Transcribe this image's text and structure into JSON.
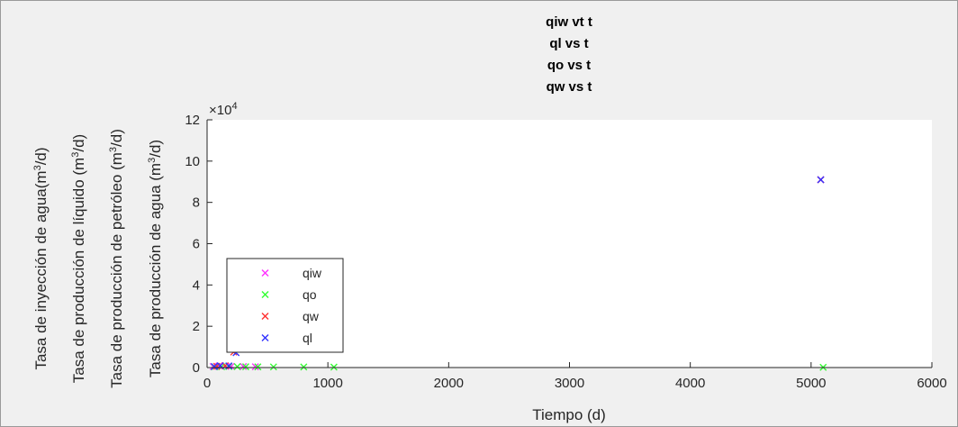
{
  "chart_data": {
    "type": "scatter",
    "title_lines": [
      "qiw vt t",
      "ql vs t",
      "qo vs t",
      "qw vs t"
    ],
    "xlabel": "Tiempo (d)",
    "ylabels": [
      {
        "text": "Tasa de inyección de agua(m",
        "sup": "3",
        "end": "/d)"
      },
      {
        "text": "Tasa de producción de líquido (m",
        "sup": "3",
        "end": "/d)"
      },
      {
        "text": "Tasa de producción de petróleo (m",
        "sup": "3",
        "end": "/d)"
      },
      {
        "text": "Tasa de producción de agua (m",
        "sup": "3",
        "end": "/d)"
      }
    ],
    "xlim": [
      0,
      6000
    ],
    "ylim": [
      0,
      120000
    ],
    "xticks": [
      "0",
      "1000",
      "2000",
      "3000",
      "4000",
      "5000",
      "6000"
    ],
    "yticks": [
      "0",
      "2",
      "4",
      "6",
      "8",
      "10",
      "12"
    ],
    "y_exponent": {
      "base": "×10",
      "power": "4"
    },
    "legend_position": "bottom-left",
    "grid": false,
    "series": [
      {
        "name": "qiw",
        "color": "#ff33ff",
        "marker": "x",
        "x": [
          50,
          100,
          150,
          200,
          300,
          400,
          5080
        ],
        "y": [
          500,
          800,
          700,
          600,
          500,
          400,
          91000
        ]
      },
      {
        "name": "qo",
        "color": "#33ff33",
        "marker": "x",
        "x": [
          60,
          120,
          180,
          250,
          320,
          420,
          550,
          800,
          1050,
          5100
        ],
        "y": [
          300,
          400,
          500,
          450,
          400,
          350,
          300,
          250,
          200,
          100
        ]
      },
      {
        "name": "qw",
        "color": "#ff3333",
        "marker": "x",
        "x": [
          80,
          150,
          220,
          5080
        ],
        "y": [
          600,
          900,
          7500,
          91000
        ]
      },
      {
        "name": "ql",
        "color": "#3333ff",
        "marker": "x",
        "x": [
          60,
          110,
          180,
          240,
          5080
        ],
        "y": [
          500,
          900,
          800,
          7200,
          91000
        ]
      }
    ]
  }
}
